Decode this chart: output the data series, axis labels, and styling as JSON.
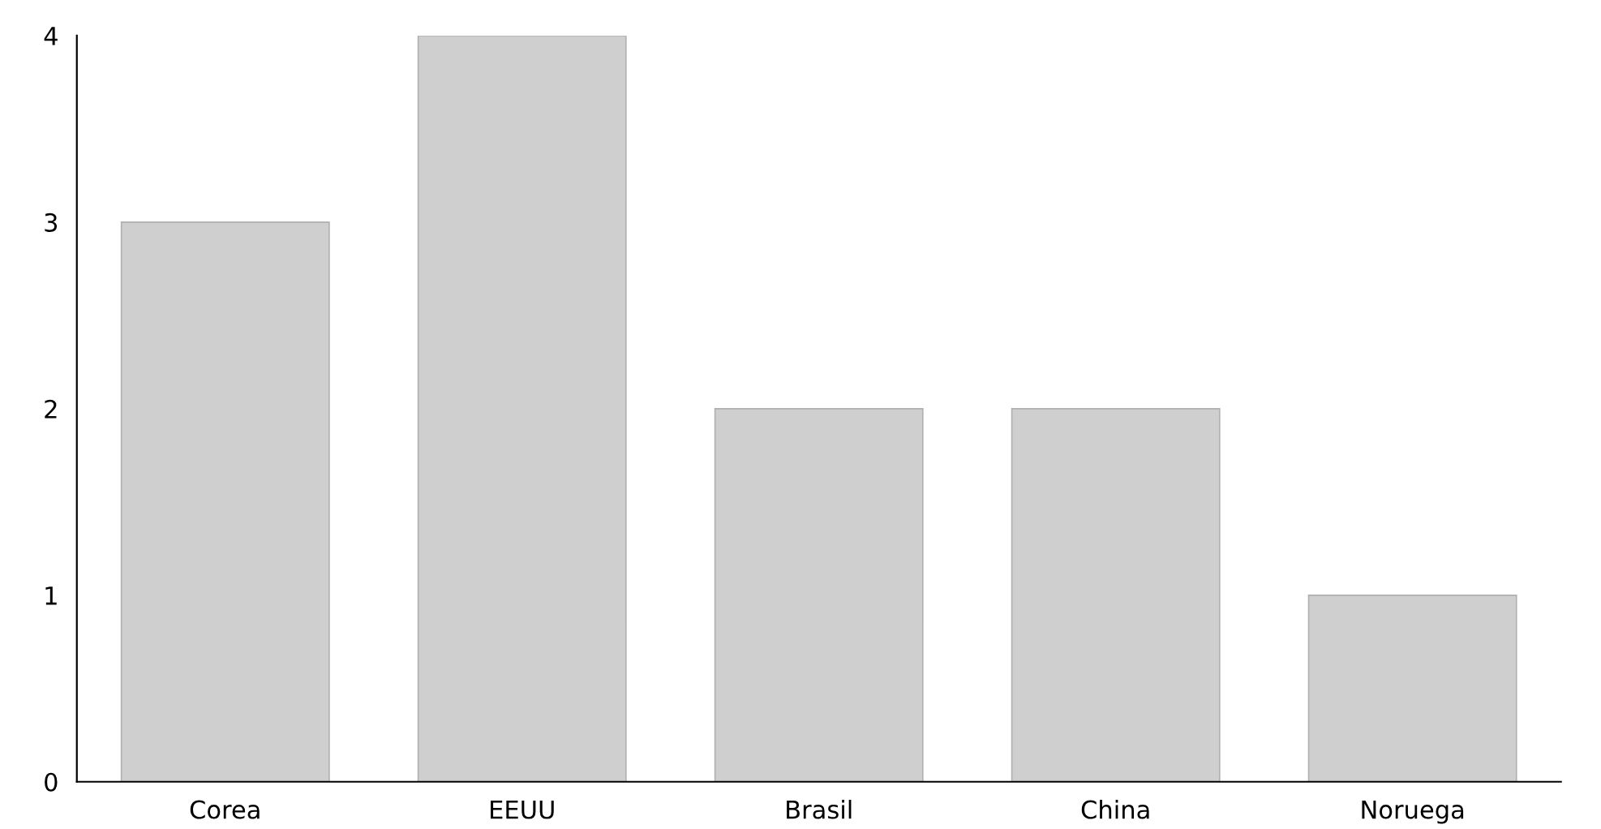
{
  "chart_data": {
    "type": "bar",
    "categories": [
      "Corea",
      "EEUU",
      "Brasil",
      "China",
      "Noruega"
    ],
    "values": [
      3,
      4,
      2,
      2,
      1
    ],
    "color": "#cfcfcf",
    "ylim": [
      0,
      4
    ],
    "yticks": [
      0,
      1,
      2,
      3,
      4
    ],
    "grid": false
  }
}
